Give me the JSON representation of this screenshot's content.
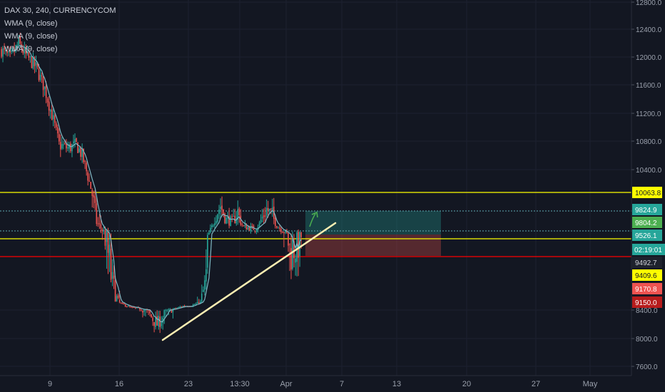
{
  "header": {
    "symbol_line": "DAX 30, 240, CURRENCYCOM",
    "indicators": [
      "WMA (9, close)",
      "WMA (9, close)",
      "WMA (9, close)"
    ]
  },
  "colors": {
    "background": "#131722",
    "bull": "#26a69a",
    "bear": "#ef5350",
    "wma": "#7fb8c4",
    "axis_text": "#9aa0ac",
    "yellow_level": "#ffff00",
    "green_level": "#4caf50",
    "red_level": "#ff0000",
    "trendline": "#fff0b3",
    "take_profit_zone": "rgba(38,166,154,0.30)",
    "stop_loss_zone": "rgba(239,83,80,0.30)"
  },
  "chart_data": {
    "type": "candlestick",
    "symbol": "DAX 30",
    "timeframe": "240",
    "source": "CURRENCYCOM",
    "x_labels": [
      "9",
      "16",
      "23",
      "13:30",
      "Apr",
      "7",
      "13",
      "20",
      "27",
      "May"
    ],
    "y_ticks": [
      "12800.0",
      "12400.0",
      "12000.0",
      "11600.0",
      "11200.0",
      "10800.0",
      "10400.0",
      "8400.0",
      "8000.0",
      "7600.0"
    ],
    "y_tick_values": [
      12800,
      12400,
      12000,
      11600,
      11200,
      10800,
      10400,
      8400,
      8000,
      7600
    ],
    "ylim": [
      7550,
      12870
    ],
    "bar_count": 235,
    "price_path_anchors": [
      [
        0,
        12100
      ],
      [
        6,
        11980
      ],
      [
        12,
        12200
      ],
      [
        16,
        12050
      ],
      [
        24,
        11850
      ],
      [
        30,
        11550
      ],
      [
        36,
        11100
      ],
      [
        40,
        10750
      ],
      [
        46,
        10700
      ],
      [
        52,
        10750
      ],
      [
        56,
        10600
      ],
      [
        60,
        10300
      ],
      [
        66,
        9800
      ],
      [
        72,
        9550
      ],
      [
        78,
        9300
      ],
      [
        84,
        8900
      ],
      [
        90,
        8600
      ],
      [
        96,
        8500
      ],
      [
        102,
        8350
      ],
      [
        108,
        8200
      ],
      [
        114,
        8350
      ],
      [
        120,
        8500
      ],
      [
        126,
        8750
      ],
      [
        132,
        8800
      ],
      [
        138,
        9100
      ],
      [
        144,
        9550
      ],
      [
        148,
        9850
      ],
      [
        152,
        9950
      ],
      [
        156,
        9820
      ],
      [
        160,
        9780
      ],
      [
        164,
        9900
      ],
      [
        168,
        9700
      ],
      [
        172,
        9680
      ],
      [
        176,
        9650
      ],
      [
        180,
        9820
      ],
      [
        184,
        9920
      ],
      [
        188,
        9870
      ],
      [
        192,
        9700
      ],
      [
        196,
        9600
      ],
      [
        200,
        9480
      ],
      [
        204,
        9500
      ],
      [
        208,
        9526
      ]
    ],
    "levels": [
      {
        "price": 10063.8,
        "label": "10063.8",
        "style": "yellow"
      },
      {
        "price": 9824.9,
        "label": "9824.9",
        "style": "teal"
      },
      {
        "price": 9804.2,
        "label": "9804.2",
        "style": "green"
      },
      {
        "price": 9526.1,
        "label": "9526.1",
        "style": "teal"
      },
      {
        "price": 9492.7,
        "label": "9492.7",
        "style": "grey"
      },
      {
        "price": 9409.6,
        "label": "9409.6",
        "style": "yellow"
      },
      {
        "price": 9170.8,
        "label": "9170.8",
        "style": "red"
      },
      {
        "price": 9150.0,
        "label": "9150.0",
        "style": "darkred"
      }
    ],
    "countdown": "02:19:01",
    "trendline": {
      "from": [
        102,
        8000
      ],
      "to": [
        210,
        9630
      ]
    },
    "position": {
      "entry": 9526.1,
      "target": 9804.2,
      "stop": 9170.8,
      "start_bar": 200,
      "end_bar": 278
    },
    "projection_arrow": true
  }
}
